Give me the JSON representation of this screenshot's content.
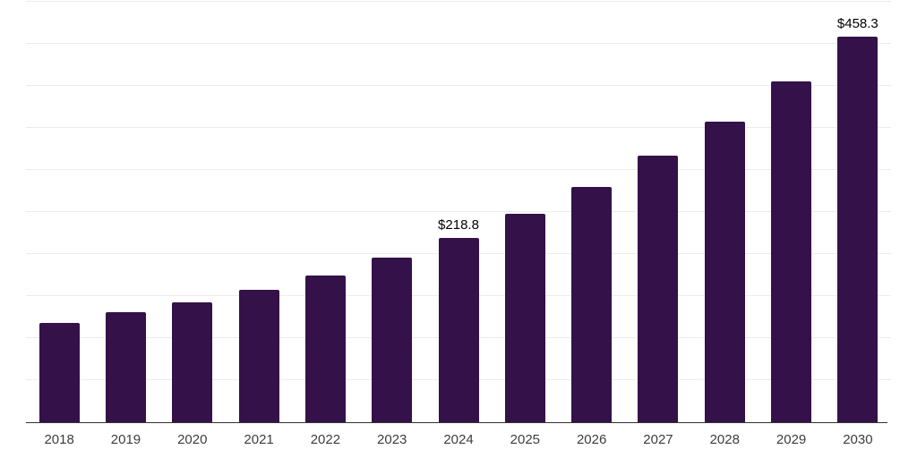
{
  "chart_data": {
    "type": "bar",
    "title": "",
    "xlabel": "",
    "ylabel": "",
    "categories": [
      "2018",
      "2019",
      "2020",
      "2021",
      "2022",
      "2023",
      "2024",
      "2025",
      "2026",
      "2027",
      "2028",
      "2029",
      "2030"
    ],
    "values": [
      117.6,
      130.8,
      142.5,
      157.3,
      174.4,
      196.0,
      218.8,
      247.5,
      279.9,
      316.6,
      357.0,
      405.1,
      458.3
    ],
    "data_labels": [
      "",
      "",
      "",
      "",
      "",
      "",
      "$218.8",
      "",
      "",
      "",
      "",
      "",
      "$458.3"
    ],
    "ylim": [
      0,
      500
    ],
    "grid_interval": 50,
    "grid_on": true,
    "legend_position": "none",
    "colors": {
      "bar": "#341148",
      "gridline": "#ececec",
      "axis_line": "#333333",
      "tick_label": "#3d3d3d",
      "value_label": "#000000",
      "background": "#ffffff"
    }
  }
}
